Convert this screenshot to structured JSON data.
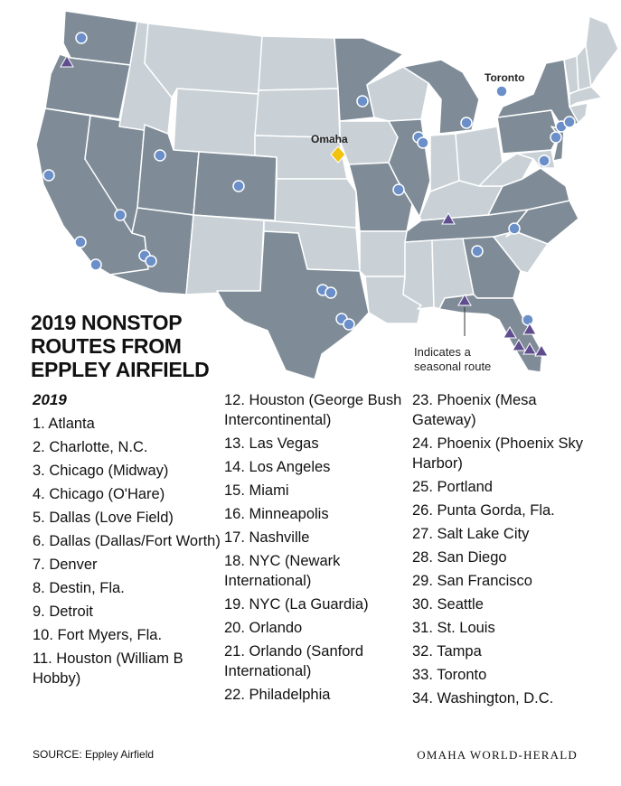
{
  "title": "2019 NONSTOP\nROUTES FROM\nEPPLEY AIRFIELD",
  "map": {
    "labels": {
      "omaha": "Omaha",
      "toronto": "Toronto"
    },
    "legend_text": "Indicates a\nseasonal route",
    "colors": {
      "destination_state": "#7f8c97",
      "other_state": "#c9d1d6",
      "state_border": "#ffffff",
      "airport_marker": "#6b8fc9",
      "seasonal_marker": "#5f4d8f",
      "omaha_marker": "#f2c20f"
    }
  },
  "routes_heading": "2019",
  "routes": {
    "col1": [
      "1. Atlanta",
      "2. Charlotte, N.C.",
      "3. Chicago (Midway)",
      "4. Chicago (O'Hare)",
      "5. Dallas (Love Field)",
      "6. Dallas (Dallas/Fort Worth)",
      "7. Denver",
      "8. Destin, Fla.",
      "9. Detroit",
      "10. Fort Myers, Fla.",
      "11. Houston (William B Hobby)"
    ],
    "col2": [
      "12. Houston (George Bush Intercontinental)",
      "13. Las Vegas",
      "14. Los Angeles",
      "15. Miami",
      "16. Minneapolis",
      "17. Nashville",
      "18. NYC (Newark International)",
      "19. NYC (La Guardia)",
      "20. Orlando",
      "21. Orlando (Sanford International)",
      "22. Philadelphia"
    ],
    "col3": [
      "23. Phoenix (Mesa Gateway)",
      "24. Phoenix (Phoenix Sky Harbor)",
      "25. Portland",
      "26. Punta Gorda, Fla.",
      "27. Salt Lake City",
      "28. San Diego",
      "29. San Francisco",
      "30. Seattle",
      "31. St. Louis",
      "32. Tampa",
      "33. Toronto",
      "34. Washington, D.C."
    ]
  },
  "source": "SOURCE: Eppley Airfield",
  "publisher": "OMAHA WORLD-HERALD"
}
